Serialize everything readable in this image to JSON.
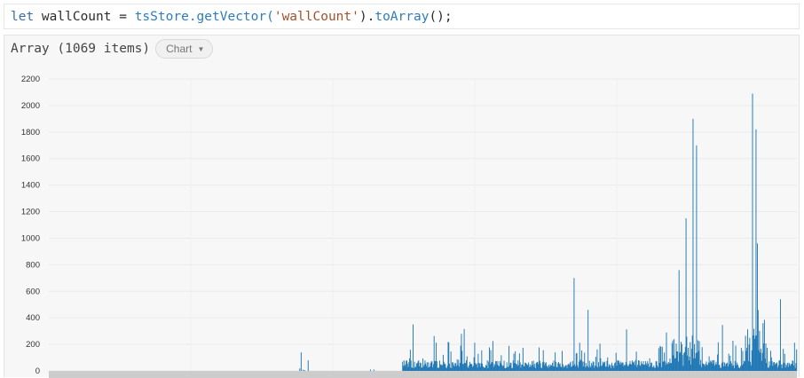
{
  "code": {
    "keyword": "let",
    "var_name": " wallCount = ",
    "object": "tsStore",
    "method_call": ".getVector(",
    "arg": "'wallCount'",
    "tail_open": ").",
    "to_array": "toArray",
    "tail_close": "();"
  },
  "output": {
    "title": "Array (1069 items)",
    "view_select": "Chart"
  },
  "chart_data": {
    "type": "bar",
    "item_count": 1069,
    "ylim": [
      0,
      2200
    ],
    "y_ticks": [
      0,
      200,
      400,
      600,
      800,
      1000,
      1200,
      1400,
      1600,
      1800,
      2000,
      2200
    ],
    "bar_color": "#1f77b4",
    "grid": true,
    "peaks": [
      {
        "index": 360,
        "value": 140
      },
      {
        "index": 370,
        "value": 80
      },
      {
        "index": 520,
        "value": 350
      },
      {
        "index": 750,
        "value": 700
      },
      {
        "index": 770,
        "value": 460
      },
      {
        "index": 900,
        "value": 760
      },
      {
        "index": 910,
        "value": 1150
      },
      {
        "index": 920,
        "value": 1900
      },
      {
        "index": 925,
        "value": 1700
      },
      {
        "index": 1005,
        "value": 2090
      },
      {
        "index": 1010,
        "value": 1820
      },
      {
        "index": 1012,
        "value": 960
      },
      {
        "index": 1045,
        "value": 540
      }
    ]
  }
}
